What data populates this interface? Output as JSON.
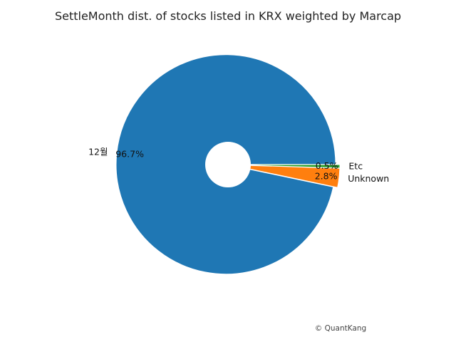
{
  "chart_data": {
    "type": "pie",
    "title": "SettleMonth dist. of stocks listed in KRX weighted by Marcap",
    "slices": [
      {
        "label": "12월",
        "value": 96.7,
        "pct_label": "96.7%",
        "color": "#1f77b4"
      },
      {
        "label": "Unknown",
        "value": 2.8,
        "pct_label": "2.8%",
        "color": "#ff7f0e"
      },
      {
        "label": "Etc",
        "value": 0.5,
        "pct_label": "0.5%",
        "color": "#2ca02c"
      }
    ],
    "start_angle_deg": 0,
    "direction": "clockwise",
    "donut": true,
    "exploded": true
  },
  "watermark": "© QuantKang"
}
